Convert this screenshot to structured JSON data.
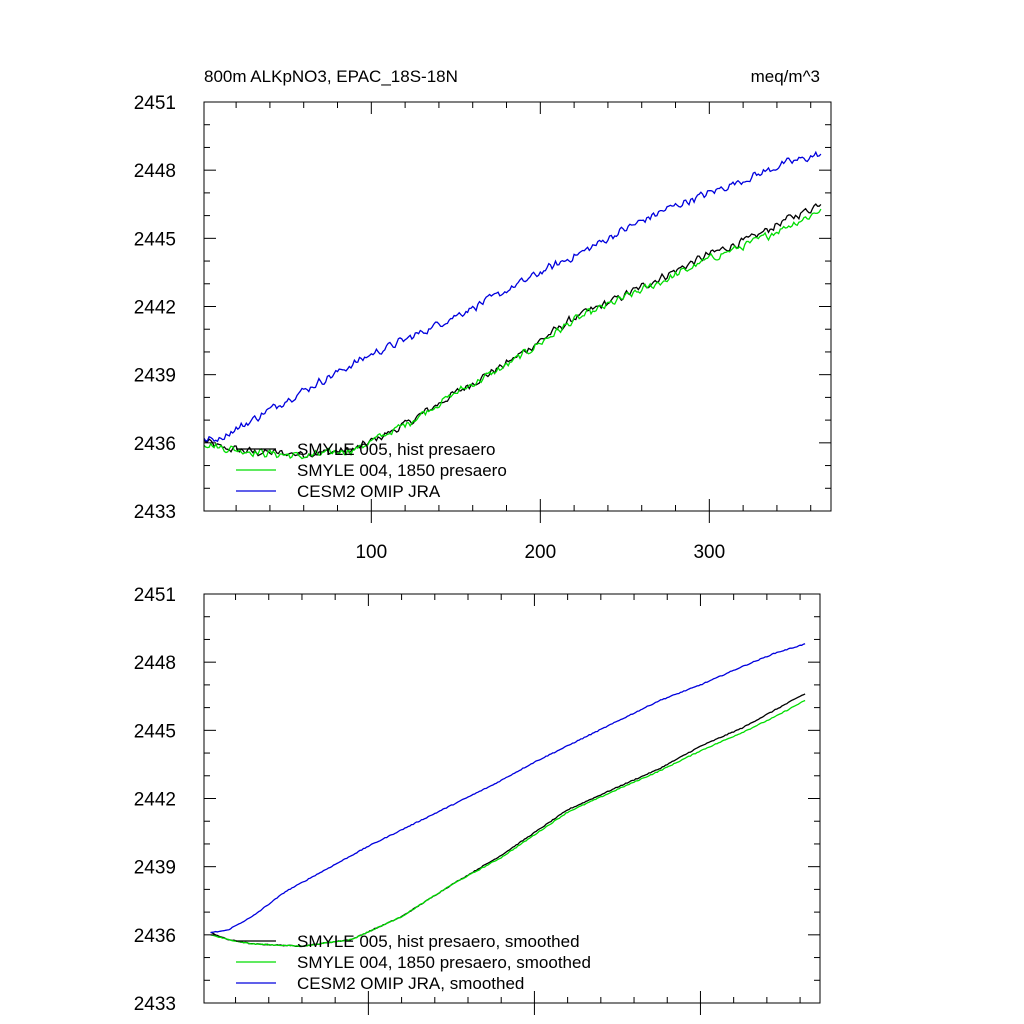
{
  "figure": {
    "title_left": "800m ALKpNO3, EPAC_18S-18N",
    "title_right": "meq/m^3"
  },
  "chart_data": [
    {
      "type": "line",
      "title": "800m ALKpNO3, EPAC_18S-18N",
      "units": "meq/m^3",
      "xlim": [
        1,
        372
      ],
      "ylim": [
        2433,
        2451
      ],
      "x_ticks": [
        100,
        200,
        300
      ],
      "y_ticks": [
        2433,
        2436,
        2439,
        2442,
        2445,
        2448,
        2451
      ],
      "legend_position": "bottom-left",
      "smoothed": false,
      "series": [
        {
          "name": "SMYLE 005, hist presaero",
          "color": "#000000",
          "anchors": [
            [
              1,
              2436.1
            ],
            [
              10,
              2435.8
            ],
            [
              30,
              2435.6
            ],
            [
              60,
              2435.5
            ],
            [
              90,
              2435.7
            ],
            [
              120,
              2436.8
            ],
            [
              150,
              2438.2
            ],
            [
              180,
              2439.5
            ],
            [
              200,
              2440.5
            ],
            [
              220,
              2441.5
            ],
            [
              250,
              2442.5
            ],
            [
              275,
              2443.4
            ],
            [
              300,
              2444.3
            ],
            [
              325,
              2445.0
            ],
            [
              345,
              2445.8
            ],
            [
              360,
              2446.3
            ],
            [
              366,
              2446.6
            ]
          ]
        },
        {
          "name": "SMYLE 004, 1850 presaero",
          "color": "#00dd00",
          "anchors": [
            [
              1,
              2436.0
            ],
            [
              10,
              2435.8
            ],
            [
              30,
              2435.6
            ],
            [
              60,
              2435.4
            ],
            [
              90,
              2435.7
            ],
            [
              120,
              2436.8
            ],
            [
              150,
              2438.2
            ],
            [
              180,
              2439.4
            ],
            [
              200,
              2440.4
            ],
            [
              220,
              2441.4
            ],
            [
              250,
              2442.4
            ],
            [
              275,
              2443.2
            ],
            [
              300,
              2444.1
            ],
            [
              325,
              2444.8
            ],
            [
              345,
              2445.5
            ],
            [
              360,
              2446.0
            ],
            [
              366,
              2446.3
            ]
          ]
        },
        {
          "name": "CESM2 OMIP JRA",
          "color": "#0000dd",
          "anchors": [
            [
              1,
              2436.1
            ],
            [
              10,
              2436.2
            ],
            [
              25,
              2436.8
            ],
            [
              50,
              2437.9
            ],
            [
              75,
              2438.9
            ],
            [
              100,
              2439.9
            ],
            [
              125,
              2440.7
            ],
            [
              150,
              2441.6
            ],
            [
              175,
              2442.5
            ],
            [
              200,
              2443.5
            ],
            [
              225,
              2444.4
            ],
            [
              250,
              2445.4
            ],
            [
              275,
              2446.3
            ],
            [
              300,
              2447.0
            ],
            [
              325,
              2447.7
            ],
            [
              345,
              2448.3
            ],
            [
              366,
              2448.7
            ]
          ]
        }
      ]
    },
    {
      "type": "line",
      "xlim": [
        1,
        372
      ],
      "ylim": [
        2433,
        2451
      ],
      "x_ticks": [
        100,
        200,
        300
      ],
      "y_ticks": [
        2433,
        2436,
        2439,
        2442,
        2445,
        2448,
        2451
      ],
      "legend_position": "bottom-left",
      "smoothed": true,
      "series": [
        {
          "name": "SMYLE 005, hist presaero, smoothed",
          "color": "#000000",
          "anchors": [
            [
              5,
              2436.1
            ],
            [
              15,
              2435.8
            ],
            [
              30,
              2435.6
            ],
            [
              60,
              2435.5
            ],
            [
              90,
              2435.8
            ],
            [
              120,
              2436.8
            ],
            [
              150,
              2438.2
            ],
            [
              180,
              2439.5
            ],
            [
              200,
              2440.5
            ],
            [
              220,
              2441.5
            ],
            [
              250,
              2442.5
            ],
            [
              275,
              2443.3
            ],
            [
              300,
              2444.3
            ],
            [
              325,
              2445.1
            ],
            [
              345,
              2445.9
            ],
            [
              360,
              2446.5
            ],
            [
              363,
              2446.6
            ]
          ]
        },
        {
          "name": "SMYLE 004, 1850 presaero, smoothed",
          "color": "#00dd00",
          "anchors": [
            [
              5,
              2436.0
            ],
            [
              15,
              2435.8
            ],
            [
              30,
              2435.6
            ],
            [
              60,
              2435.5
            ],
            [
              90,
              2435.8
            ],
            [
              120,
              2436.8
            ],
            [
              150,
              2438.2
            ],
            [
              180,
              2439.4
            ],
            [
              200,
              2440.4
            ],
            [
              220,
              2441.4
            ],
            [
              250,
              2442.4
            ],
            [
              275,
              2443.2
            ],
            [
              300,
              2444.1
            ],
            [
              325,
              2444.9
            ],
            [
              345,
              2445.6
            ],
            [
              360,
              2446.2
            ],
            [
              363,
              2446.3
            ]
          ]
        },
        {
          "name": "CESM2 OMIP JRA, smoothed",
          "color": "#0000dd",
          "anchors": [
            [
              5,
              2436.1
            ],
            [
              15,
              2436.2
            ],
            [
              30,
              2436.8
            ],
            [
              50,
              2437.9
            ],
            [
              75,
              2438.9
            ],
            [
              100,
              2439.9
            ],
            [
              125,
              2440.8
            ],
            [
              150,
              2441.7
            ],
            [
              175,
              2442.6
            ],
            [
              200,
              2443.6
            ],
            [
              225,
              2444.5
            ],
            [
              250,
              2445.4
            ],
            [
              275,
              2446.3
            ],
            [
              300,
              2447.0
            ],
            [
              325,
              2447.8
            ],
            [
              345,
              2448.4
            ],
            [
              363,
              2448.8
            ]
          ]
        }
      ]
    }
  ]
}
